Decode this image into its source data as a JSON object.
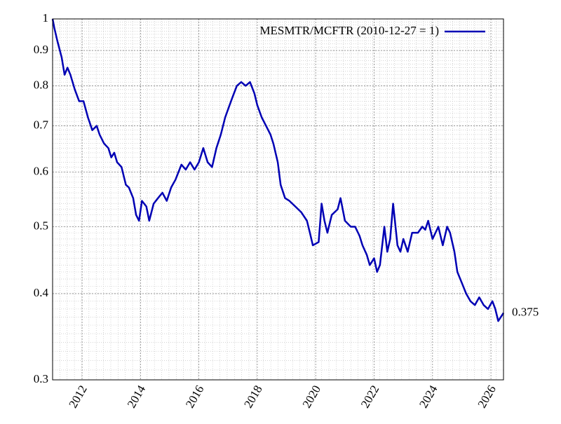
{
  "chart_data": {
    "type": "line",
    "log_y": true,
    "grid": true,
    "minor_grid": true,
    "legend": "top-right",
    "xlim": [
      2010.99,
      2026.43
    ],
    "xticks": [
      2012,
      2014,
      2016,
      2018,
      2020,
      2022,
      2024,
      2026
    ],
    "ylim": [
      0.3,
      1
    ],
    "yticks": [
      0.3,
      0.4,
      0.5,
      0.6,
      0.7,
      0.8,
      0.9,
      1
    ],
    "end_label": 0.375,
    "x": [
      2010.99,
      2011.05,
      2011.15,
      2011.3,
      2011.4,
      2011.5,
      2011.6,
      2011.75,
      2011.9,
      2012.05,
      2012.2,
      2012.35,
      2012.5,
      2012.6,
      2012.75,
      2012.9,
      2013.0,
      2013.1,
      2013.2,
      2013.35,
      2013.5,
      2013.6,
      2013.75,
      2013.85,
      2013.95,
      2014.05,
      2014.2,
      2014.3,
      2014.45,
      2014.6,
      2014.75,
      2014.9,
      2015.05,
      2015.2,
      2015.4,
      2015.55,
      2015.7,
      2015.85,
      2016.0,
      2016.15,
      2016.3,
      2016.45,
      2016.6,
      2016.75,
      2016.9,
      2017.0,
      2017.15,
      2017.3,
      2017.45,
      2017.6,
      2017.75,
      2017.9,
      2018.0,
      2018.15,
      2018.3,
      2018.45,
      2018.55,
      2018.7,
      2018.8,
      2018.95,
      2019.1,
      2019.3,
      2019.5,
      2019.7,
      2019.8,
      2019.9,
      2020.1,
      2020.2,
      2020.3,
      2020.4,
      2020.55,
      2020.75,
      2020.85,
      2021.0,
      2021.2,
      2021.35,
      2021.5,
      2021.6,
      2021.75,
      2021.85,
      2022.0,
      2022.1,
      2022.2,
      2022.35,
      2022.45,
      2022.55,
      2022.65,
      2022.8,
      2022.9,
      2023.0,
      2023.15,
      2023.3,
      2023.5,
      2023.65,
      2023.75,
      2023.85,
      2024.0,
      2024.2,
      2024.35,
      2024.5,
      2024.6,
      2024.75,
      2024.85,
      2025.0,
      2025.15,
      2025.3,
      2025.45,
      2025.6,
      2025.75,
      2025.9,
      2026.05,
      2026.15,
      2026.25,
      2026.43
    ],
    "series": [
      {
        "name": "MESMTR/MCFTR (2010-12-27 = 1)",
        "color": "#0000b4",
        "values": [
          1.0,
          0.97,
          0.93,
          0.88,
          0.83,
          0.85,
          0.83,
          0.79,
          0.76,
          0.76,
          0.72,
          0.69,
          0.7,
          0.68,
          0.66,
          0.65,
          0.63,
          0.64,
          0.62,
          0.61,
          0.575,
          0.57,
          0.55,
          0.52,
          0.51,
          0.545,
          0.535,
          0.51,
          0.54,
          0.55,
          0.56,
          0.545,
          0.57,
          0.585,
          0.615,
          0.605,
          0.62,
          0.605,
          0.62,
          0.65,
          0.62,
          0.61,
          0.65,
          0.68,
          0.72,
          0.74,
          0.77,
          0.8,
          0.81,
          0.8,
          0.81,
          0.78,
          0.75,
          0.72,
          0.7,
          0.68,
          0.66,
          0.62,
          0.575,
          0.55,
          0.545,
          0.535,
          0.525,
          0.51,
          0.49,
          0.47,
          0.475,
          0.54,
          0.51,
          0.49,
          0.52,
          0.53,
          0.55,
          0.51,
          0.5,
          0.5,
          0.485,
          0.47,
          0.455,
          0.44,
          0.45,
          0.43,
          0.44,
          0.5,
          0.46,
          0.48,
          0.54,
          0.47,
          0.46,
          0.48,
          0.46,
          0.49,
          0.49,
          0.5,
          0.495,
          0.51,
          0.48,
          0.5,
          0.47,
          0.5,
          0.49,
          0.46,
          0.43,
          0.415,
          0.4,
          0.39,
          0.385,
          0.395,
          0.385,
          0.38,
          0.39,
          0.38,
          0.365,
          0.375
        ]
      }
    ]
  }
}
